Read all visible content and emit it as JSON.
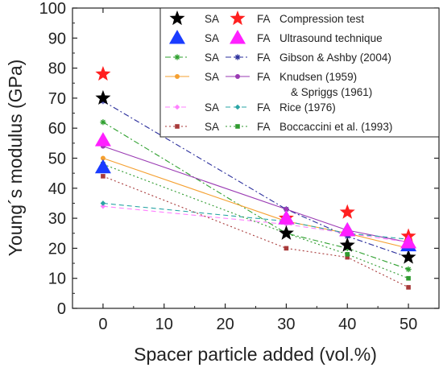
{
  "chart_data": {
    "type": "scatter",
    "title": "",
    "xlabel": "Spacer particle added (vol.%)",
    "ylabel": "Young´s modulus (GPa)",
    "xlim": [
      -5,
      55
    ],
    "ylim": [
      0,
      100
    ],
    "xticks": [
      "0",
      "10",
      "20",
      "30",
      "40",
      "50"
    ],
    "yticks": [
      "0",
      "10",
      "20",
      "30",
      "40",
      "50",
      "60",
      "70",
      "80",
      "90",
      "100"
    ],
    "legend_position": "top-right",
    "series": [
      {
        "name": "SA Compression test",
        "marker": "star",
        "color": "#000000",
        "line": "none",
        "x": [
          0,
          30,
          40,
          50
        ],
        "y": [
          70,
          25,
          21,
          17
        ]
      },
      {
        "name": "FA Compression test",
        "marker": "star",
        "color": "#ff2020",
        "line": "none",
        "x": [
          0,
          30,
          40,
          50
        ],
        "y": [
          78,
          30,
          32,
          24
        ]
      },
      {
        "name": "SA Ultrasound technique",
        "marker": "triangle",
        "color": "#1a3cff",
        "line": "none",
        "x": [
          0,
          30,
          40,
          50
        ],
        "y": [
          47,
          30,
          26,
          21
        ]
      },
      {
        "name": "FA Ultrasound technique",
        "marker": "triangle",
        "color": "#ff20ff",
        "line": "none",
        "x": [
          0,
          30,
          40,
          50
        ],
        "y": [
          56,
          30,
          26,
          22
        ]
      },
      {
        "name": "SA Gibson & Ashby (2004)",
        "marker": "asterisk",
        "color": "#2fa02f",
        "line": "dashdot",
        "x": [
          0,
          30,
          40,
          50
        ],
        "y": [
          62,
          25,
          20,
          13
        ]
      },
      {
        "name": "FA Gibson & Ashby (2004)",
        "marker": "asterisk",
        "color": "#2b2f9c",
        "line": "dashdot",
        "x": [
          0,
          30,
          40,
          50
        ],
        "y": [
          69,
          33,
          24,
          17
        ]
      },
      {
        "name": "SA Knudsen (1959) & Spriggs (1961)",
        "marker": "circle",
        "color": "#f5a030",
        "line": "solid",
        "x": [
          0,
          30,
          40,
          50
        ],
        "y": [
          50,
          29,
          25,
          20
        ]
      },
      {
        "name": "FA Knudsen (1959) & Spriggs (1961)",
        "marker": "circle",
        "color": "#9a3ab3",
        "line": "solid",
        "x": [
          0,
          30,
          40,
          50
        ],
        "y": [
          54,
          33,
          26,
          22
        ]
      },
      {
        "name": "SA Rice (1976)",
        "marker": "diamond",
        "color": "#ff80ff",
        "line": "dashed",
        "x": [
          0,
          30,
          40,
          50
        ],
        "y": [
          34,
          28,
          25,
          22
        ]
      },
      {
        "name": "FA Rice (1976)",
        "marker": "diamond",
        "color": "#2aa5a5",
        "line": "dashed",
        "x": [
          0,
          30,
          40,
          50
        ],
        "y": [
          35,
          29,
          25,
          23
        ]
      },
      {
        "name": "SA Boccaccini et al. (1993)",
        "marker": "square",
        "color": "#a83a3a",
        "line": "dotted",
        "x": [
          0,
          30,
          40,
          50
        ],
        "y": [
          44,
          20,
          17,
          7
        ]
      },
      {
        "name": "FA Boccaccini et al. (1993)",
        "marker": "square",
        "color": "#2f9a2f",
        "line": "dotted",
        "x": [
          0,
          30,
          40,
          50
        ],
        "y": [
          48,
          25,
          18,
          10
        ]
      }
    ],
    "legend": [
      {
        "sa": "SA",
        "fa": "FA",
        "label": "Compression test",
        "sa_series": 0,
        "fa_series": 1
      },
      {
        "sa": "SA",
        "fa": "FA",
        "label": "Ultrasound technique",
        "sa_series": 2,
        "fa_series": 3
      },
      {
        "sa": "SA",
        "fa": "FA",
        "label": "Gibson & Ashby (2004)",
        "sa_series": 4,
        "fa_series": 5
      },
      {
        "sa": "SA",
        "fa": "FA",
        "label": "Knudsen (1959)",
        "label2": "& Spriggs (1961)",
        "sa_series": 6,
        "fa_series": 7
      },
      {
        "sa": "SA",
        "fa": "FA",
        "label": "Rice  (1976)",
        "sa_series": 8,
        "fa_series": 9
      },
      {
        "sa": "SA",
        "fa": "FA",
        "label": "Boccaccini et al. (1993)",
        "sa_series": 10,
        "fa_series": 11
      }
    ]
  }
}
